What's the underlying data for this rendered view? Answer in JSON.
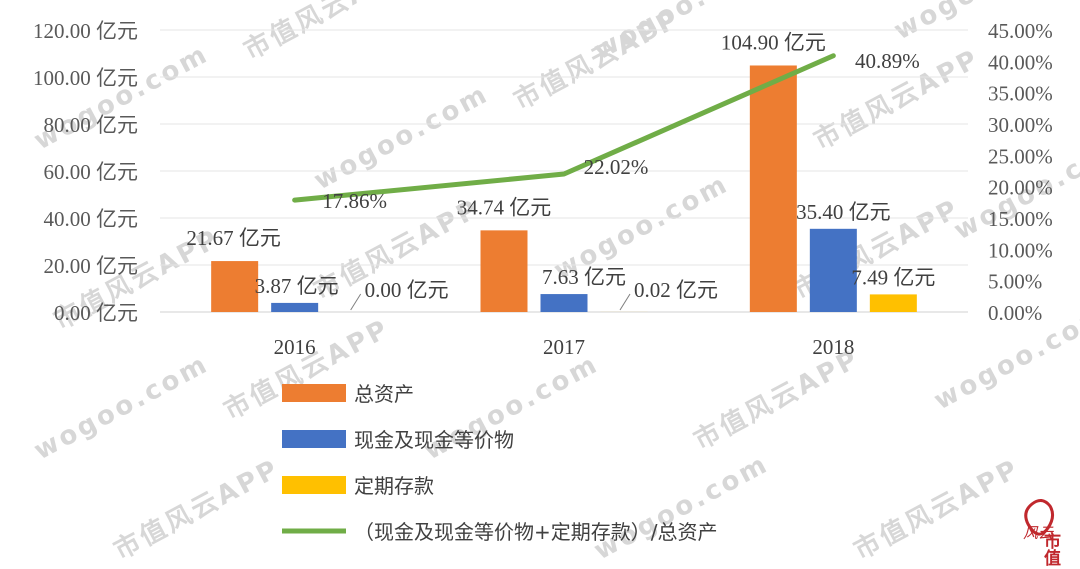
{
  "chart_data": {
    "type": "bar",
    "categories": [
      "2016",
      "2017",
      "2018"
    ],
    "ylim": [
      0,
      120
    ],
    "y_ticks": [
      "0.00 亿元",
      "20.00 亿元",
      "40.00 亿元",
      "60.00 亿元",
      "80.00 亿元",
      "100.00 亿元",
      "120.00 亿元"
    ],
    "y2lim": [
      0,
      45
    ],
    "y2_ticks": [
      "0.00%",
      "5.00%",
      "10.00%",
      "15.00%",
      "20.00%",
      "25.00%",
      "30.00%",
      "35.00%",
      "40.00%",
      "45.00%"
    ],
    "series": [
      {
        "name": "总资产",
        "type": "bar",
        "color": "#ed7d31",
        "values": [
          21.67,
          34.74,
          104.9
        ],
        "labels": [
          "21.67 亿元",
          "34.74 亿元",
          "104.90 亿元"
        ]
      },
      {
        "name": "现金及现金等价物",
        "type": "bar",
        "color": "#4472c4",
        "values": [
          3.87,
          7.63,
          35.4
        ],
        "labels": [
          "3.87 亿元",
          "7.63 亿元",
          "35.40 亿元"
        ]
      },
      {
        "name": "定期存款",
        "type": "bar",
        "color": "#ffc000",
        "values": [
          0.0,
          0.02,
          7.49
        ],
        "labels": [
          "0.00 亿元",
          "0.02 亿元",
          "7.49 亿元"
        ]
      },
      {
        "name": "（现金及现金等价物+定期存款）/总资产",
        "type": "line",
        "axis": "right",
        "color": "#70ad47",
        "values": [
          17.86,
          22.02,
          40.89
        ],
        "labels": [
          "17.86%",
          "22.02%",
          "40.89%"
        ]
      }
    ],
    "grid": true,
    "legend_position": "bottom-left"
  },
  "watermark": {
    "text_site": "wogoo.com",
    "text_app": "市值风云APP",
    "logo_text": "市值",
    "logo_script": "风云",
    "logo_color": "#c0282d"
  }
}
